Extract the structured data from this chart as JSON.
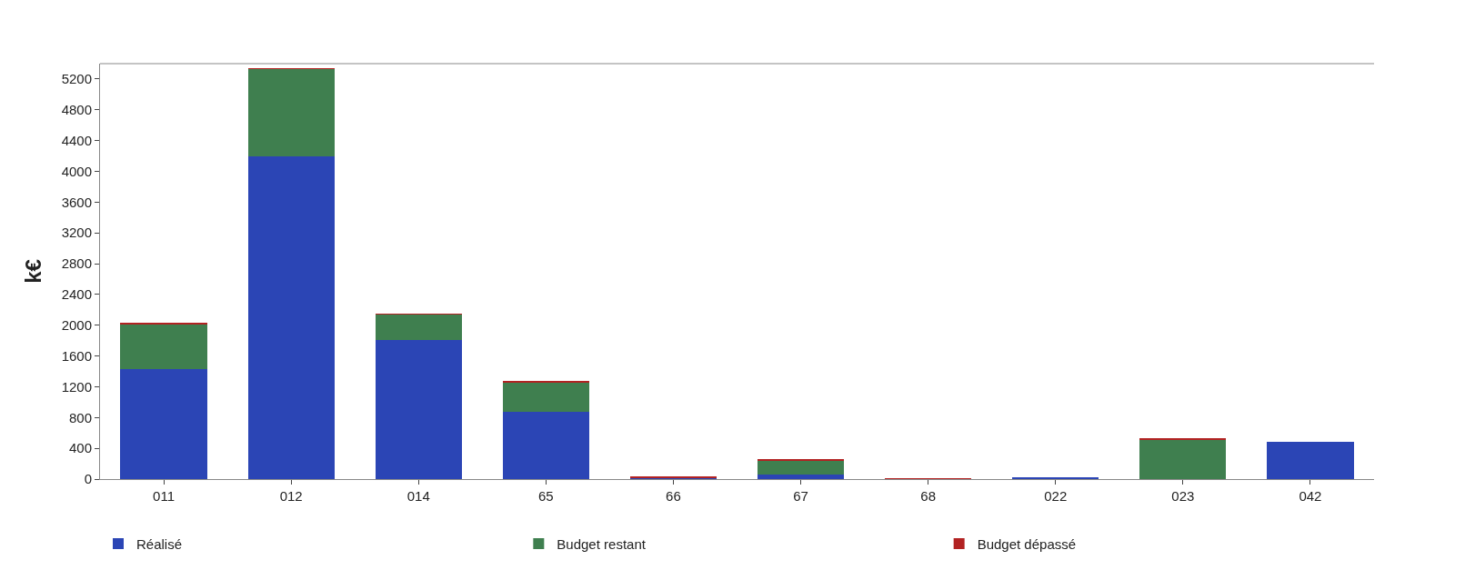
{
  "chart_data": {
    "type": "bar",
    "stacked": true,
    "ylabel": "k€",
    "categories": [
      "011",
      "012",
      "014",
      "65",
      "66",
      "67",
      "68",
      "022",
      "023",
      "042"
    ],
    "series": [
      {
        "name": "Réalisé",
        "color": "#2b45b5",
        "values": [
          1430,
          4190,
          1810,
          870,
          20,
          60,
          0,
          20,
          0,
          480
        ]
      },
      {
        "name": "Budget restant",
        "color": "#3f7f4f",
        "values": [
          590,
          1140,
          330,
          390,
          0,
          180,
          0,
          0,
          510,
          0
        ]
      },
      {
        "name": "Budget dépassé",
        "color": "#b22222",
        "values": [
          10,
          10,
          10,
          10,
          10,
          10,
          10,
          0,
          10,
          0
        ]
      }
    ],
    "ylim": [
      0,
      5400
    ],
    "yticks": [
      0,
      400,
      800,
      1200,
      1600,
      2000,
      2400,
      2800,
      3200,
      3600,
      4000,
      4400,
      4800,
      5200
    ],
    "legend": "bottom"
  }
}
